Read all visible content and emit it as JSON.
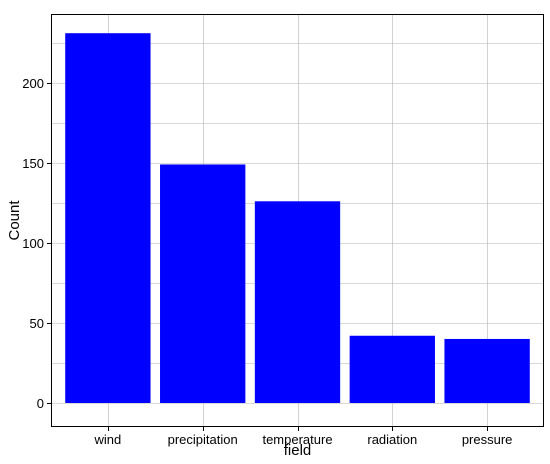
{
  "chart_data": {
    "type": "bar",
    "title": "",
    "xlabel": "field",
    "ylabel": "Count",
    "categories": [
      "wind",
      "precipitation",
      "temperature",
      "radiation",
      "pressure"
    ],
    "values": [
      231,
      149,
      126,
      42,
      40
    ],
    "ylim": [
      -15,
      243
    ],
    "yticks": [
      "0",
      "50",
      "100",
      "150",
      "200"
    ],
    "grid": true,
    "legend": "none",
    "colors": {
      "bar": "#0000ff",
      "grid": "#b3b3b3",
      "axis": "#000000",
      "background": "#ffffff"
    }
  }
}
